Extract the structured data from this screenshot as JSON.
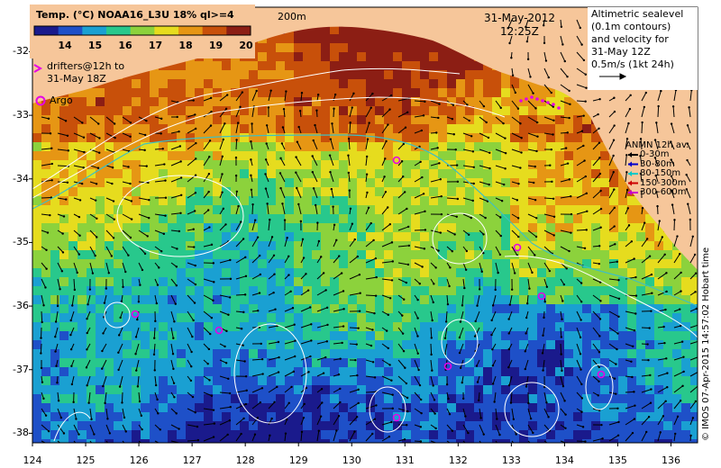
{
  "colorbar": {
    "title": "Temp. (°C) NOAA16_L3U 18% ql>=4",
    "ticks": [
      "14",
      "15",
      "16",
      "17",
      "18",
      "19",
      "20"
    ],
    "colors": [
      "#1a1a8c",
      "#1e50c8",
      "#1aa0d2",
      "#28c88c",
      "#8cd23c",
      "#e6dc1e",
      "#e69614",
      "#c8500a",
      "#8c1e14"
    ]
  },
  "bathymetry_label": "200m",
  "date": "31-May-2012",
  "time": "12:25Z",
  "altimetry_note": [
    "Altimetric sealevel",
    "(0.1m contours)",
    "and velocity for",
    "31-May 12Z"
  ],
  "velocity_scale": "0.5m/s (1kt 24h)",
  "legend": {
    "drifters_label_line1": "drifters@12h to",
    "drifters_label_line2": "31-May 18Z",
    "argo_label": "Argo",
    "anmn_title": "ANMN 12h av.",
    "anmn_depths": [
      "0-30m",
      "30-80m",
      "80-150m",
      "150-300m",
      "300-600m"
    ],
    "anmn_colors": [
      "#000000",
      "#0000cc",
      "#00c8c8",
      "#cc0000",
      "#cc00cc"
    ]
  },
  "axes": {
    "x_ticks": [
      "124",
      "125",
      "126",
      "127",
      "128",
      "129",
      "130",
      "131",
      "132",
      "133",
      "134",
      "135",
      "136"
    ],
    "y_ticks": [
      "-32",
      "-33",
      "-34",
      "-35",
      "-36",
      "-37",
      "-38"
    ],
    "x_range": [
      124,
      136.5
    ],
    "y_range": [
      -38.15,
      -31.3
    ]
  },
  "credit": "© IMOS 07-Apr-2015 14:57:02 Hobart time",
  "colors": {
    "land": "#f6c69a",
    "drifter": "#e600e6",
    "argo": "#e600e6"
  }
}
